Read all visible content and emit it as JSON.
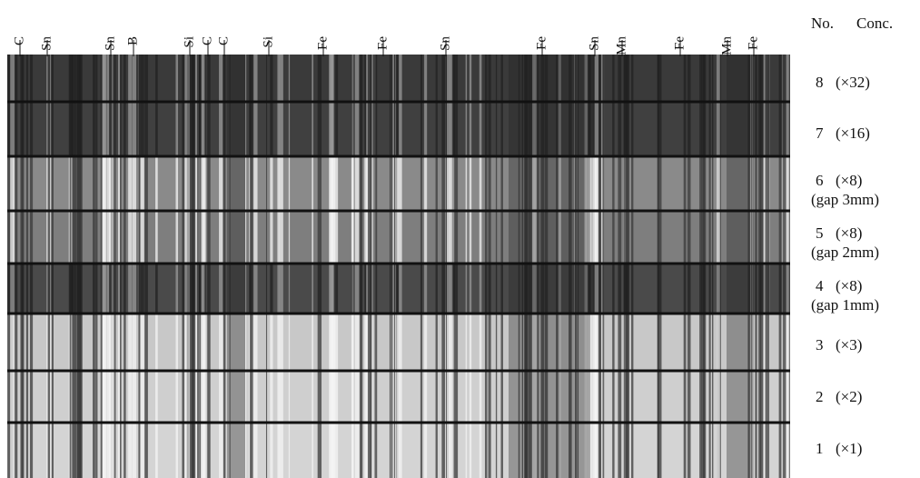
{
  "element_labels": [
    "C",
    "Sn",
    "Sn",
    "B",
    "Si",
    "C",
    "C",
    "Si",
    "Fe",
    "Fe",
    "Sn",
    "Fe",
    "Sn",
    "Mn",
    "Fe",
    "Mn",
    "Fe"
  ],
  "header": {
    "no": "No.",
    "conc": "Conc."
  },
  "rows": [
    {
      "no": "8",
      "conc": "(×32)"
    },
    {
      "no": "7",
      "conc": "(×16)"
    },
    {
      "no": "6",
      "conc": "(×8)",
      "gap": "(gap 3mm)"
    },
    {
      "no": "5",
      "conc": "(×8)",
      "gap": "(gap 2mm)"
    },
    {
      "no": "4",
      "conc": "(×8)",
      "gap": "(gap 1mm)"
    },
    {
      "no": "3",
      "conc": "(×3)"
    },
    {
      "no": "2",
      "conc": "(×2)"
    },
    {
      "no": "1",
      "conc": "(×1)"
    }
  ]
}
